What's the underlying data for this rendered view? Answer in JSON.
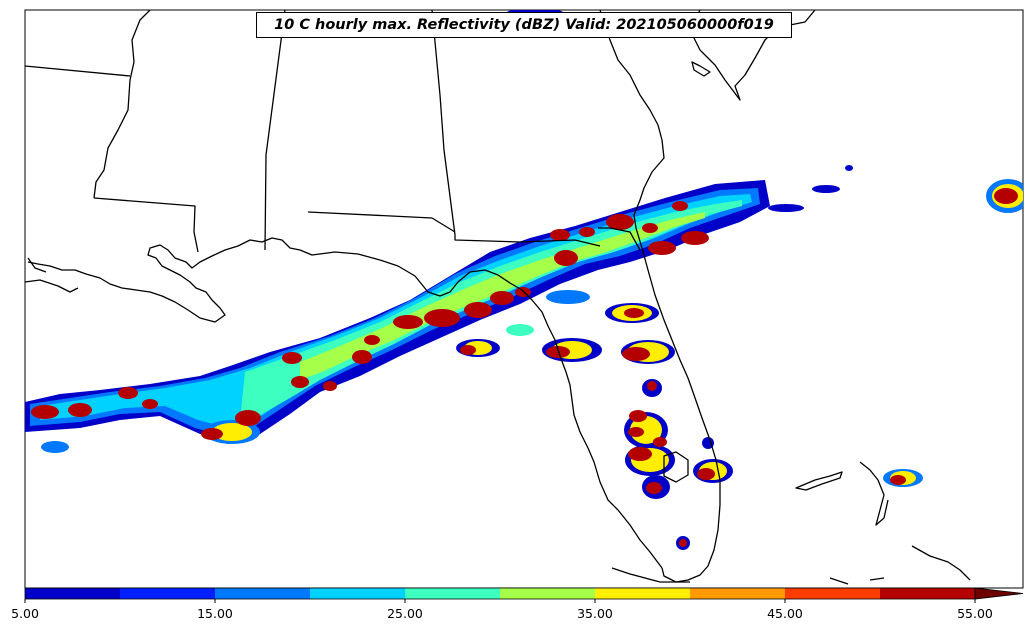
{
  "title": "10 C hourly max. Reflectivity (dBZ) Valid: 202105060000f019",
  "colorbar": {
    "tick_labels": [
      "5.00",
      "15.00",
      "25.00",
      "35.00",
      "45.00",
      "55.00"
    ],
    "levels": [
      5,
      10,
      15,
      20,
      25,
      30,
      35,
      40,
      45,
      50,
      55
    ],
    "colors": [
      "#0000c8",
      "#0020ff",
      "#0078ff",
      "#00d2ff",
      "#3cffc0",
      "#a6ff48",
      "#ffee00",
      "#ff9a00",
      "#ff3c00",
      "#b40000"
    ],
    "extend": "max",
    "extend_color": "#6e0000",
    "unit": "dBZ"
  },
  "legend_placement": "bottom",
  "basemap": {
    "lines": [
      "coastlines",
      "state borders"
    ],
    "line_color": "#000000",
    "ocean_land_fill": "#ffffff"
  }
}
